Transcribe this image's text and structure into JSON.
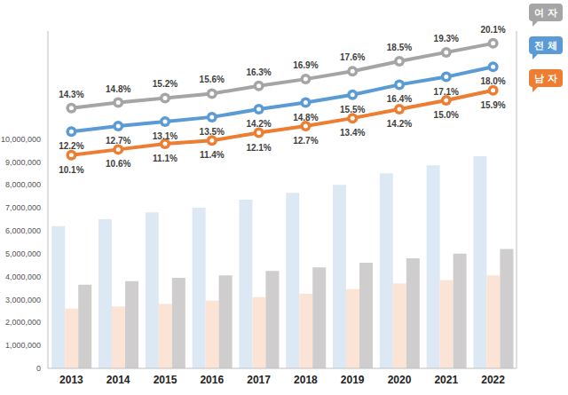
{
  "chart_data": {
    "type": "bar",
    "categories": [
      "2013",
      "2014",
      "2015",
      "2016",
      "2017",
      "2018",
      "2019",
      "2020",
      "2021",
      "2022"
    ],
    "ylim": [
      0,
      14700000
    ],
    "yticks": [
      0,
      {
        "value": 1000000,
        "label": "1,000,000"
      },
      {
        "value": 2000000,
        "label": "2,000,000"
      },
      {
        "value": 3000000,
        "label": "3,000,000"
      },
      {
        "value": 4000000,
        "label": "4,000,000"
      },
      {
        "value": 5000000,
        "label": "5,000,000"
      },
      {
        "value": 6000000,
        "label": "6,000,000"
      },
      {
        "value": 7000000,
        "label": "7,000,000"
      },
      {
        "value": 8000000,
        "label": "8,000,000"
      },
      {
        "value": 9000000,
        "label": "9,000,000"
      },
      {
        "value": 10000000,
        "label": "10,000,000"
      }
    ],
    "y2lim": [
      -9,
      21.2
    ],
    "y2ticks": [],
    "grid": false,
    "series": [
      {
        "name": "전 체",
        "type": "bar",
        "color": "#dce9f5",
        "values": [
          6200000,
          6500000,
          6800000,
          7000000,
          7350000,
          7650000,
          8000000,
          8500000,
          8850000,
          9250000
        ]
      },
      {
        "name": "남 자",
        "type": "bar",
        "color": "#fbe4d5",
        "values": [
          2600000,
          2700000,
          2800000,
          2950000,
          3100000,
          3250000,
          3450000,
          3700000,
          3850000,
          4050000
        ]
      },
      {
        "name": "여 자",
        "type": "bar",
        "color": "#cfcdcd",
        "values": [
          3650000,
          3800000,
          3950000,
          4050000,
          4250000,
          4400000,
          4600000,
          4800000,
          5000000,
          5200000
        ]
      },
      {
        "name": "여 자",
        "type": "line",
        "axis": "y2",
        "color": "#a5a5a5",
        "marker": "circle",
        "data_labels": true,
        "values": [
          14.3,
          14.8,
          15.2,
          15.6,
          16.3,
          16.9,
          17.6,
          18.5,
          19.3,
          20.1
        ],
        "value_labels": [
          "14.3%",
          "14.8%",
          "15.2%",
          "15.6%",
          "16.3%",
          "16.9%",
          "17.6%",
          "18.5%",
          "19.3%",
          "20.1%"
        ]
      },
      {
        "name": "전 체",
        "type": "line",
        "axis": "y2",
        "color": "#5b9bd5",
        "marker": "circle",
        "data_labels": true,
        "values": [
          12.2,
          12.7,
          13.1,
          13.5,
          14.2,
          14.8,
          15.5,
          16.4,
          17.1,
          18.0
        ],
        "value_labels": [
          "12.2%",
          "12.7%",
          "13.1%",
          "13.5%",
          "14.2%",
          "14.8%",
          "15.5%",
          "16.4%",
          "17.1%",
          "18.0%"
        ]
      },
      {
        "name": "남 자",
        "type": "line",
        "axis": "y2",
        "color": "#ed7d31",
        "marker": "circle",
        "data_labels": true,
        "values": [
          10.1,
          10.6,
          11.1,
          11.4,
          12.1,
          12.7,
          13.4,
          14.2,
          15.0,
          15.9
        ],
        "value_labels": [
          "10.1%",
          "10.6%",
          "11.1%",
          "11.4%",
          "12.1%",
          "12.7%",
          "13.4%",
          "14.2%",
          "15.0%",
          "15.9%"
        ]
      }
    ]
  }
}
